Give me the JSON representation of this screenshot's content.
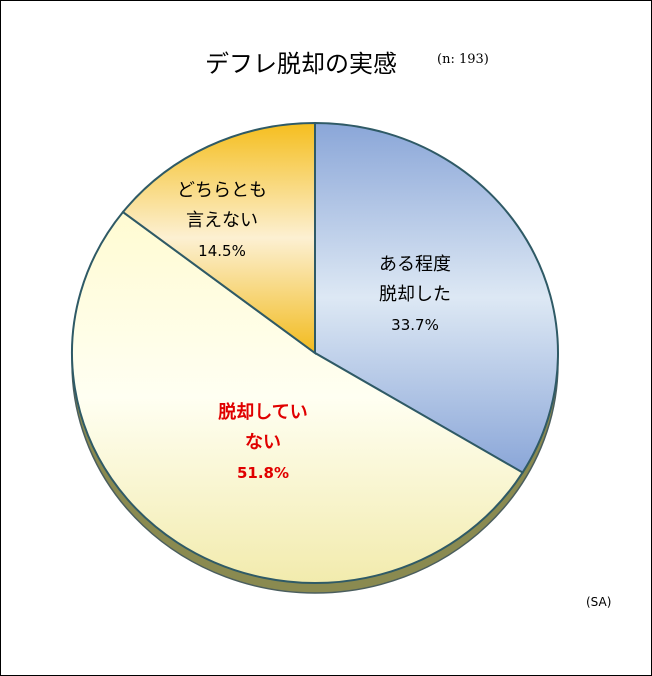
{
  "chart_data": {
    "type": "pie",
    "title": "デフレ脱却の実感",
    "subtitle": "(n: 193)",
    "note": "(SA)",
    "slices": [
      {
        "line1": "ある程度",
        "line2": "脱却した",
        "pct_label": "33.7%",
        "value": 33.7,
        "color_top": "#8aa6d8",
        "color_mid": "#dde8f4",
        "label_color": "#000000",
        "bold": false
      },
      {
        "line1": "脱却してい",
        "line2": "ない",
        "pct_label": "51.8%",
        "value": 51.8,
        "color_top": "#ffffd8",
        "color_mid": "#f4f0b8",
        "label_color": "#e00000",
        "bold": true
      },
      {
        "line1": "どちらとも",
        "line2": "言えない",
        "pct_label": "14.5%",
        "value": 14.5,
        "color_top": "#f2bb1e",
        "color_mid": "#fbe8b8",
        "label_color": "#000000",
        "bold": false
      }
    ]
  }
}
